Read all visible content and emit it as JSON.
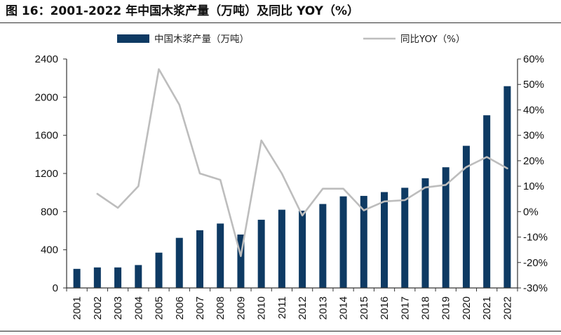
{
  "title": "图 16：2001-2022 年中国木浆产量（万吨）及同比 YOY（%）",
  "colors": {
    "bar": "#0e3a63",
    "line": "#bdbdbd"
  },
  "chart_data": {
    "type": "bar",
    "categories": [
      "2001",
      "2002",
      "2003",
      "2004",
      "2005",
      "2006",
      "2007",
      "2008",
      "2009",
      "2010",
      "2011",
      "2012",
      "2013",
      "2014",
      "2015",
      "2016",
      "2017",
      "2018",
      "2019",
      "2020",
      "2021",
      "2022"
    ],
    "series": [
      {
        "name": "中国木浆产量（万吨）",
        "type": "bar",
        "axis": "left",
        "values": [
          200,
          215,
          215,
          240,
          370,
          525,
          605,
          675,
          560,
          715,
          820,
          810,
          880,
          960,
          965,
          1005,
          1050,
          1150,
          1265,
          1490,
          1810,
          2115
        ]
      },
      {
        "name": "同比YOY（%）",
        "type": "line",
        "axis": "right",
        "values": [
          null,
          7,
          1.5,
          10,
          56,
          42,
          15,
          12.5,
          -17.5,
          28,
          15,
          -1.5,
          9,
          9,
          0.5,
          4,
          4.5,
          9.5,
          10.5,
          17.5,
          21.5,
          17
        ]
      }
    ],
    "y_left": {
      "ylim": [
        0,
        2400
      ],
      "ticks": [
        0,
        400,
        800,
        1200,
        1600,
        2000,
        2400
      ]
    },
    "y_right": {
      "ylim": [
        -30,
        60
      ],
      "ticks": [
        -30,
        -20,
        -10,
        0,
        10,
        20,
        30,
        40,
        50,
        60
      ],
      "tick_suffix": "%"
    },
    "legend": "top",
    "grid": false
  }
}
